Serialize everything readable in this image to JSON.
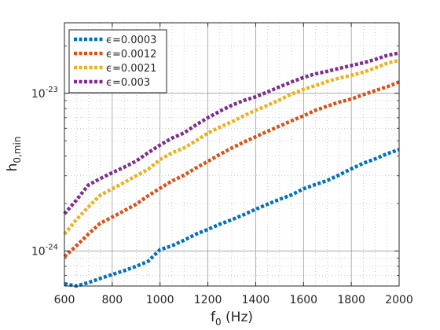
{
  "chart_data": {
    "type": "line",
    "xlabel": {
      "main": "f",
      "sub": "0",
      "rest": " (Hz)"
    },
    "ylabel": {
      "main": "h",
      "sub": "0,min"
    },
    "xlim": [
      600,
      2000
    ],
    "ylim": [
      6e-25,
      2.8e-23
    ],
    "yscale": "log",
    "grid": "major and minor",
    "legend_position": "top-left",
    "x_ticks": [
      600,
      800,
      1000,
      1200,
      1400,
      1600,
      1800,
      2000
    ],
    "x_tick_labels": [
      "600",
      "800",
      "1000",
      "1200",
      "1400",
      "1600",
      "1800",
      "2000"
    ],
    "y_ticks": [
      {
        "value": 1e-24,
        "base": "10",
        "exp": "-24"
      },
      {
        "value": 1e-23,
        "base": "10",
        "exp": "-23"
      }
    ],
    "x": [
      600,
      650,
      700,
      750,
      800,
      850,
      900,
      950,
      1000,
      1050,
      1100,
      1150,
      1200,
      1250,
      1300,
      1350,
      1400,
      1450,
      1500,
      1550,
      1600,
      1650,
      1700,
      1750,
      1800,
      1850,
      1900,
      1950,
      2000
    ],
    "series": [
      {
        "name": "ϵ=0.0003",
        "color": "#0072BD",
        "values": [
          6.2e-25,
          6e-25,
          6.3e-25,
          6.7e-25,
          7.1e-25,
          7.5e-25,
          8e-25,
          8.6e-25,
          1.02e-24,
          1.08e-24,
          1.17e-24,
          1.28e-24,
          1.37e-24,
          1.48e-24,
          1.58e-24,
          1.7e-24,
          1.84e-24,
          1.98e-24,
          2.13e-24,
          2.27e-24,
          2.48e-24,
          2.64e-24,
          2.8e-24,
          3.04e-24,
          3.32e-24,
          3.6e-24,
          3.84e-24,
          4.14e-24,
          4.4e-24
        ]
      },
      {
        "name": "ϵ=0.0012",
        "color": "#D95319",
        "values": [
          9.2e-25,
          1.08e-24,
          1.28e-24,
          1.5e-24,
          1.64e-24,
          1.8e-24,
          1.98e-24,
          2.24e-24,
          2.5e-24,
          2.78e-24,
          3.02e-24,
          3.36e-24,
          3.7e-24,
          4.1e-24,
          4.5e-24,
          4.9e-24,
          5.3e-24,
          5.75e-24,
          6.2e-24,
          6.7e-24,
          7.2e-24,
          7.8e-24,
          8.3e-24,
          8.8e-24,
          9.2e-24,
          9.8e-24,
          1.04e-23,
          1.1e-23,
          1.18e-23
        ]
      },
      {
        "name": "ϵ=0.0021",
        "color": "#EDB120",
        "values": [
          1.28e-24,
          1.58e-24,
          1.9e-24,
          2.26e-24,
          2.48e-24,
          2.72e-24,
          3e-24,
          3.3e-24,
          3.8e-24,
          4.2e-24,
          4.5e-24,
          5e-24,
          5.6e-24,
          6.1e-24,
          6.6e-24,
          7.2e-24,
          7.8e-24,
          8.4e-24,
          9.1e-24,
          9.9e-24,
          1.06e-23,
          1.12e-23,
          1.19e-23,
          1.25e-23,
          1.3e-23,
          1.36e-23,
          1.45e-23,
          1.55e-23,
          1.62e-23
        ]
      },
      {
        "name": "ϵ=0.003",
        "color": "#7E2F8E",
        "values": [
          1.72e-24,
          2.1e-24,
          2.62e-24,
          2.88e-24,
          3.14e-24,
          3.4e-24,
          3.72e-24,
          4.2e-24,
          4.7e-24,
          5.2e-24,
          5.6e-24,
          6.3e-24,
          7e-24,
          7.7e-24,
          8.4e-24,
          9e-24,
          9.5e-24,
          1.02e-23,
          1.1e-23,
          1.18e-23,
          1.26e-23,
          1.33e-23,
          1.38e-23,
          1.44e-23,
          1.5e-23,
          1.56e-23,
          1.64e-23,
          1.74e-23,
          1.8e-23
        ]
      }
    ]
  }
}
